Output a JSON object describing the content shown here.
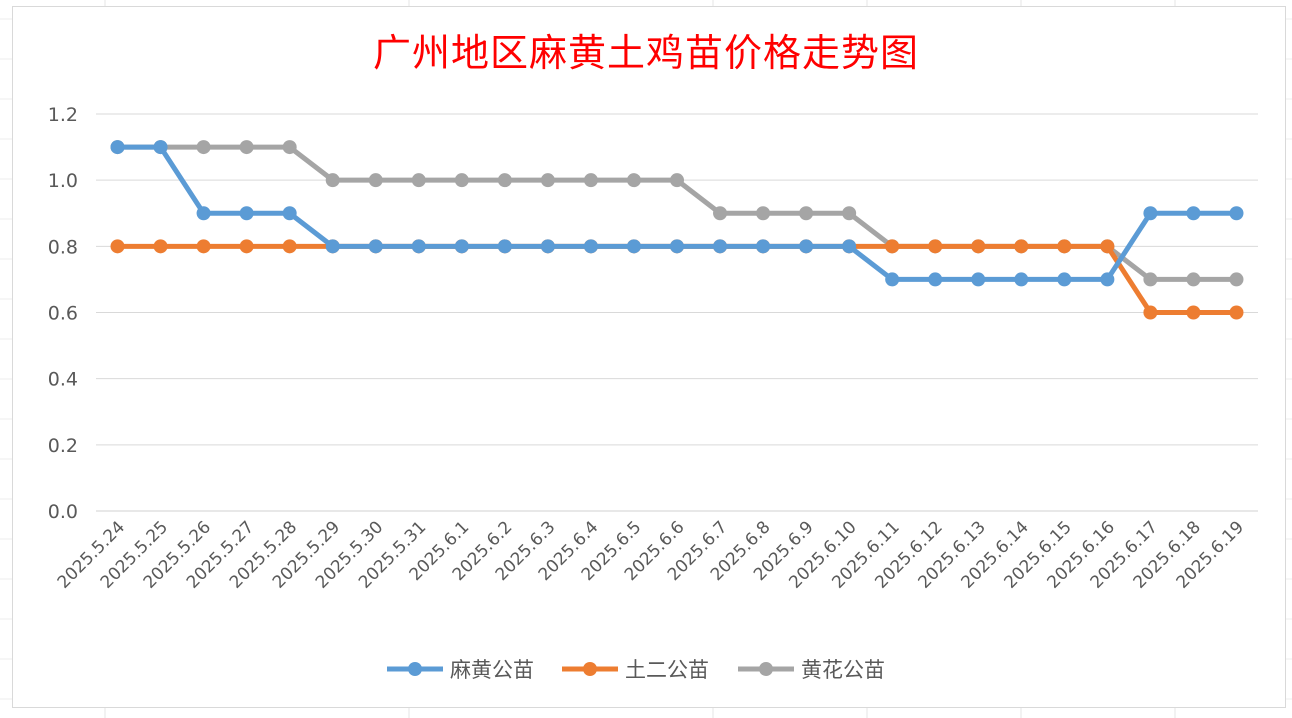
{
  "chart_data": {
    "type": "line",
    "title": "广州地区麻黄土鸡苗价格走势图",
    "xlabel": "",
    "ylabel": "",
    "categories": [
      "2025.5.24",
      "2025.5.25",
      "2025.5.26",
      "2025.5.27",
      "2025.5.28",
      "2025.5.29",
      "2025.5.30",
      "2025.5.31",
      "2025.6.1",
      "2025.6.2",
      "2025.6.3",
      "2025.6.4",
      "2025.6.5",
      "2025.6.6",
      "2025.6.7",
      "2025.6.8",
      "2025.6.9",
      "2025.6.10",
      "2025.6.11",
      "2025.6.12",
      "2025.6.13",
      "2025.6.14",
      "2025.6.15",
      "2025.6.16",
      "2025.6.17",
      "2025.6.18",
      "2025.6.19"
    ],
    "yticks": [
      "0.0",
      "0.2",
      "0.4",
      "0.6",
      "0.8",
      "1.0",
      "1.2"
    ],
    "ylim": [
      0,
      1.2
    ],
    "grid": true,
    "legend": "bottom",
    "series": [
      {
        "name": "麻黄公苗",
        "color": "#5b9bd5",
        "values": [
          1.1,
          1.1,
          0.9,
          0.9,
          0.9,
          0.8,
          0.8,
          0.8,
          0.8,
          0.8,
          0.8,
          0.8,
          0.8,
          0.8,
          0.8,
          0.8,
          0.8,
          0.8,
          0.7,
          0.7,
          0.7,
          0.7,
          0.7,
          0.7,
          0.9,
          0.9,
          0.9
        ]
      },
      {
        "name": "土二公苗",
        "color": "#ed7d31",
        "values": [
          0.8,
          0.8,
          0.8,
          0.8,
          0.8,
          0.8,
          0.8,
          0.8,
          0.8,
          0.8,
          0.8,
          0.8,
          0.8,
          0.8,
          0.8,
          0.8,
          0.8,
          0.8,
          0.8,
          0.8,
          0.8,
          0.8,
          0.8,
          0.8,
          0.6,
          0.6,
          0.6
        ]
      },
      {
        "name": "黄花公苗",
        "color": "#a5a5a5",
        "values": [
          1.1,
          1.1,
          1.1,
          1.1,
          1.1,
          1.0,
          1.0,
          1.0,
          1.0,
          1.0,
          1.0,
          1.0,
          1.0,
          1.0,
          0.9,
          0.9,
          0.9,
          0.9,
          0.8,
          0.8,
          0.8,
          0.8,
          0.8,
          0.8,
          0.7,
          0.7,
          0.7
        ]
      }
    ]
  }
}
